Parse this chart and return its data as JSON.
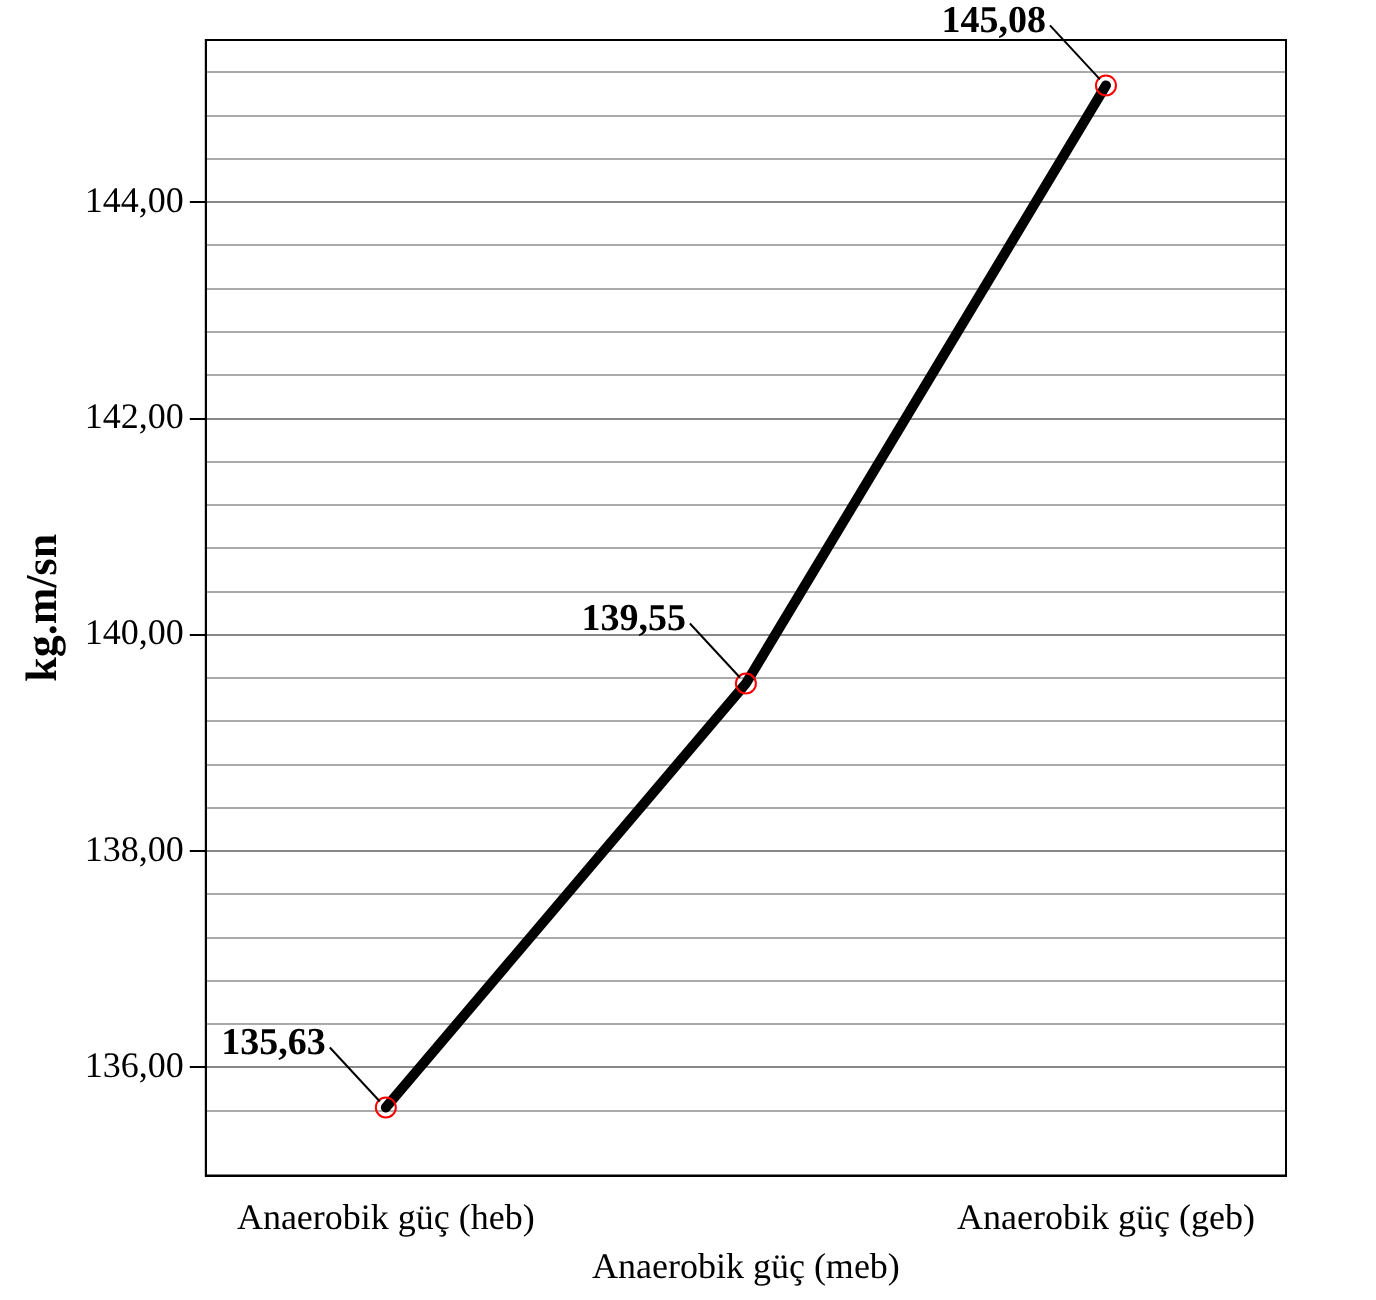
{
  "chart_data": {
    "type": "line",
    "xlabel": "Anaerobik güç (meb)",
    "ylabel": "kg.m/sn",
    "categories": [
      "Anaerobik güç (heb)",
      null,
      "Anaerobik güç (geb)"
    ],
    "series": [
      {
        "color": "#000000",
        "values": [
          135.63,
          139.55,
          145.08
        ],
        "value_labels": [
          "135,63",
          "139,55",
          "145,08"
        ]
      }
    ],
    "ylim": [
      135,
      145.5
    ],
    "yticks": [
      {
        "value": 135.6,
        "label": null
      },
      {
        "value": 136,
        "label": "136,00"
      },
      {
        "value": 136.4,
        "label": null
      },
      {
        "value": 136.8,
        "label": null
      },
      {
        "value": 137.2,
        "label": null
      },
      {
        "value": 137.6,
        "label": null
      },
      {
        "value": 138,
        "label": "138,00"
      },
      {
        "value": 138.4,
        "label": null
      },
      {
        "value": 138.8,
        "label": null
      },
      {
        "value": 139.2,
        "label": null
      },
      {
        "value": 139.6,
        "label": null
      },
      {
        "value": 140,
        "label": "140,00"
      },
      {
        "value": 140.4,
        "label": null
      },
      {
        "value": 140.8,
        "label": null
      },
      {
        "value": 141.2,
        "label": null
      },
      {
        "value": 141.6,
        "label": null
      },
      {
        "value": 142,
        "label": "142,00"
      },
      {
        "value": 142.4,
        "label": null
      },
      {
        "value": 142.8,
        "label": null
      },
      {
        "value": 143.2,
        "label": null
      },
      {
        "value": 143.6,
        "label": null
      },
      {
        "value": 144,
        "label": "144,00"
      },
      {
        "value": 144.4,
        "label": null
      },
      {
        "value": 144.8,
        "label": null
      },
      {
        "value": 145.2,
        "label": null
      }
    ],
    "grid": "y",
    "legend": false,
    "marker": "circle",
    "line_style": "solid"
  }
}
